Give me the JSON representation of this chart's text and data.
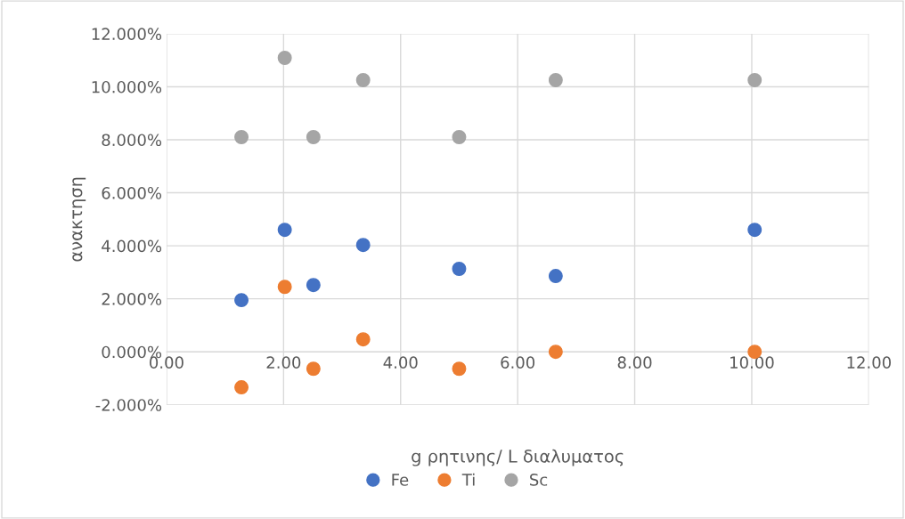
{
  "chart_data": {
    "type": "scatter",
    "xlabel": "g ρητινης/ L διαλυματος",
    "ylabel": "ανακτηση",
    "xlim": [
      0,
      12
    ],
    "xticks": [
      {
        "value": 0,
        "label": "0.00"
      },
      {
        "value": 2,
        "label": "2.00"
      },
      {
        "value": 4,
        "label": "4.00"
      },
      {
        "value": 6,
        "label": "6.00"
      },
      {
        "value": 8,
        "label": "8.00"
      },
      {
        "value": 10,
        "label": "10.00"
      },
      {
        "value": 12,
        "label": "12.00"
      }
    ],
    "ylim": [
      -2,
      12
    ],
    "yticks": [
      {
        "value": -2,
        "label": "-2.000%"
      },
      {
        "value": 0,
        "label": "0.000%"
      },
      {
        "value": 2,
        "label": "2.000%"
      },
      {
        "value": 4,
        "label": "4.000%"
      },
      {
        "value": 6,
        "label": "6.000%"
      },
      {
        "value": 8,
        "label": "8.000%"
      },
      {
        "value": 10,
        "label": "10.000%"
      },
      {
        "value": 12,
        "label": "12.000%"
      }
    ],
    "x": [
      1.28,
      2.02,
      2.51,
      3.36,
      5.0,
      6.65,
      10.05
    ],
    "series": [
      {
        "name": "Fe",
        "color": "#4472c4",
        "values": [
          1.95,
          4.6,
          2.52,
          4.03,
          3.13,
          2.86,
          4.6
        ]
      },
      {
        "name": "Ti",
        "color": "#ed7d31",
        "values": [
          -1.34,
          2.45,
          -0.64,
          0.47,
          -0.64,
          0.0,
          0.0
        ]
      },
      {
        "name": "Sc",
        "color": "#a5a5a5",
        "values": [
          8.1,
          11.09,
          8.1,
          10.25,
          8.1,
          10.25,
          10.25
        ]
      }
    ],
    "grid": true,
    "legend": "bottom",
    "marker": "circle"
  }
}
